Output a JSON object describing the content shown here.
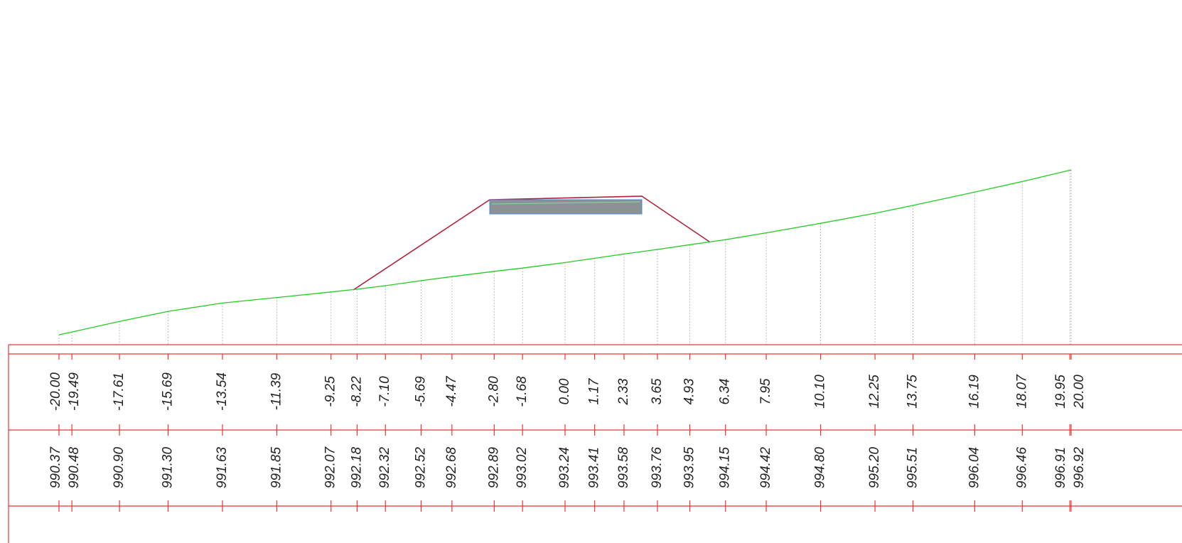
{
  "offsets": [
    "-20.00",
    "-19.49",
    "-17.61",
    "-15.69",
    "-13.54",
    "-11.39",
    "-9.25",
    "-8.22",
    "-7.10",
    "-5.69",
    "-4.47",
    "-2.80",
    "-1.68",
    "0.00",
    "1.17",
    "2.33",
    "3.65",
    "4.93",
    "6.34",
    "7.95",
    "10.10",
    "12.25",
    "13.75",
    "16.19",
    "18.07",
    "19.95",
    "20.00"
  ],
  "elevations": [
    "990.37",
    "990.48",
    "990.90",
    "991.30",
    "991.63",
    "991.85",
    "992.07",
    "992.18",
    "992.32",
    "992.52",
    "992.68",
    "992.89",
    "993.02",
    "993.24",
    "993.41",
    "993.58",
    "993.76",
    "993.95",
    "994.15",
    "994.42",
    "994.80",
    "995.20",
    "995.51",
    "996.04",
    "996.46",
    "996.91",
    "996.92"
  ]
}
